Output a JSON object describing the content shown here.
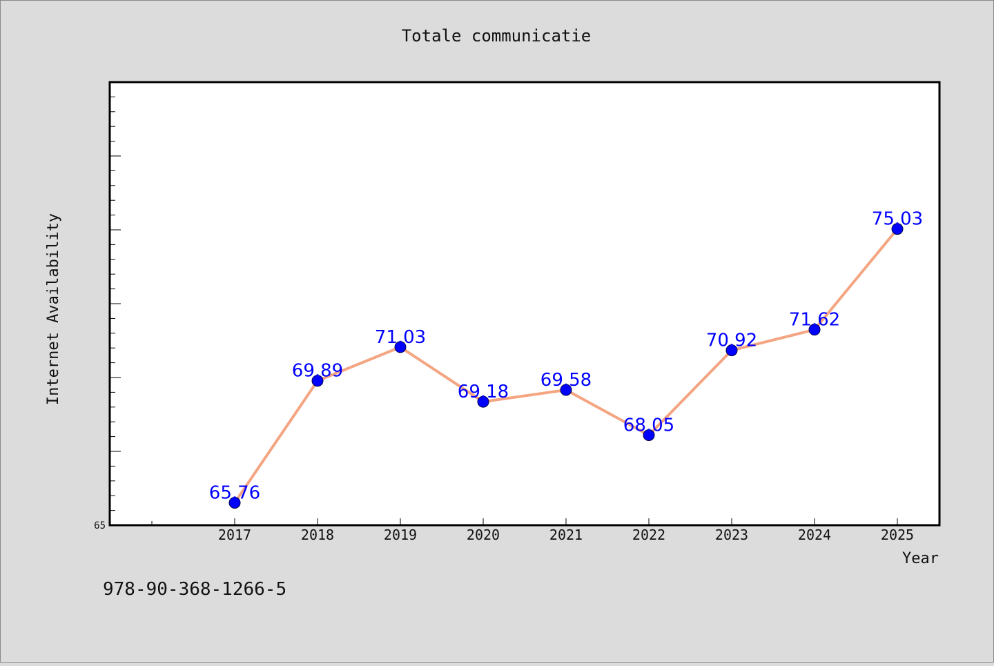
{
  "chart_data": {
    "type": "line",
    "title": "Totale communicatie",
    "xlabel": "Year",
    "ylabel": "Internet Availability",
    "categories": [
      "2017",
      "2018",
      "2019",
      "2020",
      "2021",
      "2022",
      "2023",
      "2024",
      "2025"
    ],
    "series": [
      {
        "values": [
          65.76,
          69.89,
          71.03,
          69.18,
          69.58,
          68.05,
          70.92,
          71.62,
          75.03
        ],
        "data_labels": [
          "65.76",
          "69.89",
          "71.03",
          "69.18",
          "69.58",
          "68.05",
          "70.92",
          "71.62",
          "75.03"
        ]
      }
    ],
    "ylim": [
      65,
      80
    ],
    "y_tick_labels": [
      "65"
    ],
    "grid": false,
    "legend": "none",
    "colors": {
      "line": "#f4a582",
      "marker": "#0000ff",
      "data_label": "#0000ff",
      "background": "#dcdcdc",
      "plot_background": "#ffffff"
    }
  },
  "footer": {
    "code": "978-90-368-1266-5"
  }
}
